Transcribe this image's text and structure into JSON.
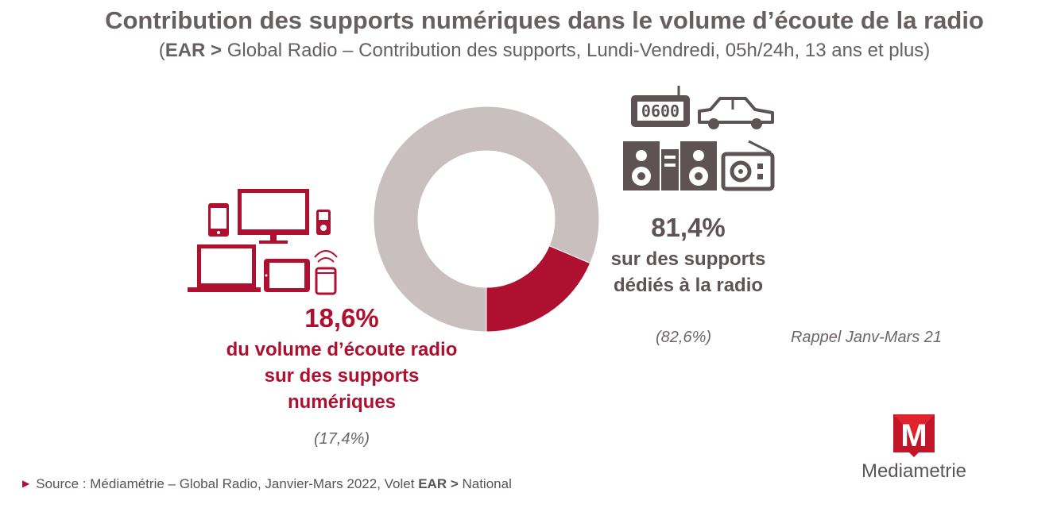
{
  "header": {
    "title": "Contribution des supports numériques dans le volume d’écoute de la radio",
    "subtitle_open": "(",
    "subtitle_bold": "EAR >",
    "subtitle_rest": " Global Radio – Contribution des supports, Lundi-Vendredi, 05h/24h, 13 ans et plus)"
  },
  "chart_data": {
    "type": "pie",
    "donut": true,
    "categories": [
      "Supports numériques",
      "Supports dédiés à la radio"
    ],
    "values": [
      18.6,
      81.4
    ],
    "recall_values": [
      17.4,
      82.6
    ],
    "colors": [
      "#b01030",
      "#c9bfbf"
    ]
  },
  "digital": {
    "pct": "18,6%",
    "desc_line1": "du volume d’écoute radio",
    "desc_line2": "sur des supports",
    "desc_line3": "numériques",
    "recall": "(17,4%)",
    "icons": [
      "smartphone-icon",
      "monitor-icon",
      "mp3-player-icon",
      "laptop-icon",
      "tablet-icon",
      "smart-speaker-icon"
    ]
  },
  "dedicated": {
    "pct": "81,4%",
    "desc_line1": "sur des supports",
    "desc_line2": "dédiés à la radio",
    "recall": "(82,6%)",
    "icons": [
      "clock-radio-icon",
      "car-icon",
      "hifi-speakers-icon",
      "transistor-radio-icon"
    ],
    "clock_display": "0600"
  },
  "recall_label": "Rappel Janv-Mars 21",
  "footer": {
    "source_prefix": "Source : Médiamétrie – Global Radio, Janvier-Mars 2022, Volet ",
    "source_bold": "EAR >",
    "source_suffix": " National"
  },
  "logo": {
    "name": "Mediametrie",
    "letter": "M"
  },
  "colors": {
    "accent": "#b01030",
    "grey_segment": "#c9bfbf",
    "icon_grey": "#5d5354",
    "text": "#685f60"
  }
}
